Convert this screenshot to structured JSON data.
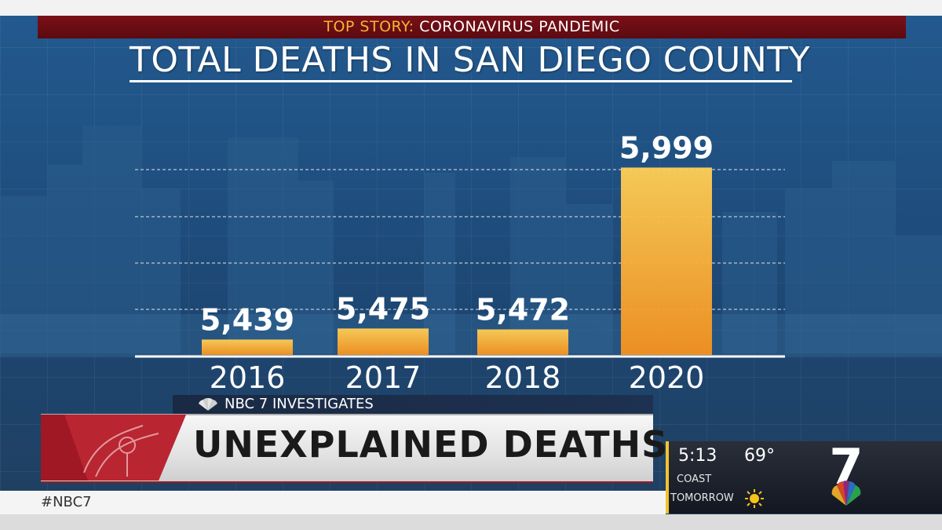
{
  "banner": {
    "tag": "TOP STORY:",
    "story": "CORONAVIRUS PANDEMIC"
  },
  "chart_data": {
    "type": "bar",
    "title": "TOTAL DEATHS IN SAN DIEGO COUNTY",
    "categories": [
      "2016",
      "2017",
      "2018",
      "2020"
    ],
    "values": [
      5439,
      5475,
      5472,
      5999
    ],
    "value_labels": [
      "5,439",
      "5,475",
      "5,472",
      "5,999"
    ],
    "ylim": [
      5389,
      6000
    ],
    "grid": true,
    "bar_color": "#f4a020",
    "bar_color_top": "#ffd060"
  },
  "lower_third": {
    "sub_label": "NBC 7 INVESTIGATES",
    "headline": "UNEXPLAINED DEATHS"
  },
  "hashtag": "#NBC7",
  "weather": {
    "time": "5:13",
    "temp": "69°",
    "location": "COAST",
    "period": "TOMORROW",
    "icon": "sun-icon"
  },
  "logo": {
    "text": "7",
    "icon": "nbc-peacock-icon"
  },
  "colors": {
    "banner_red": "#6b0d14",
    "banner_tag": "#f4b533",
    "accent_yellow": "#f0c330"
  }
}
